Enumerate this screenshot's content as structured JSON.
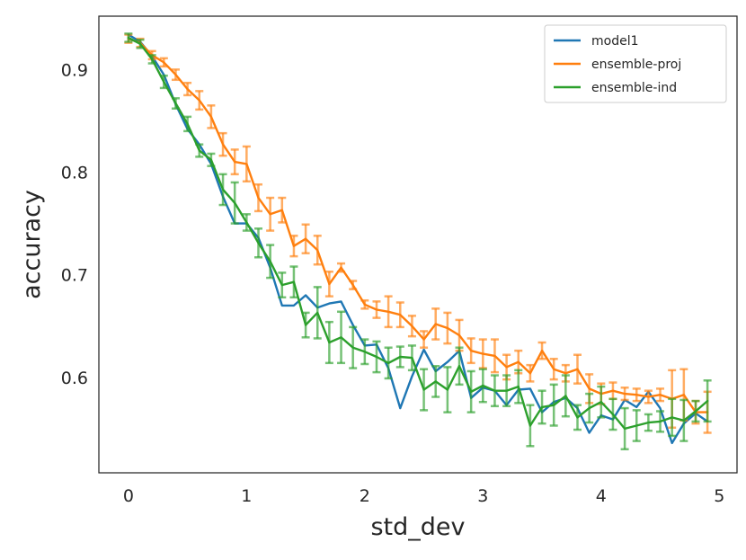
{
  "chart_data": {
    "type": "line",
    "title": "",
    "xlabel": "std_dev",
    "ylabel": "accuracy",
    "xlim": [
      -0.25,
      5.15
    ],
    "ylim": [
      0.507,
      0.952
    ],
    "xticks": [
      0,
      1,
      2,
      3,
      4,
      5
    ],
    "xtick_labels": [
      "0",
      "1",
      "2",
      "3",
      "4",
      "5"
    ],
    "yticks": [
      0.6,
      0.7,
      0.8,
      0.9
    ],
    "ytick_labels": [
      "0.6",
      "0.7",
      "0.8",
      "0.9"
    ],
    "grid": false,
    "legend_position": "top-right",
    "x": [
      0.0,
      0.1,
      0.2,
      0.3,
      0.4,
      0.5,
      0.6,
      0.7,
      0.8,
      0.9,
      1.0,
      1.1,
      1.2,
      1.3,
      1.4,
      1.5,
      1.6,
      1.7,
      1.8,
      1.9,
      2.0,
      2.1,
      2.2,
      2.3,
      2.4,
      2.5,
      2.6,
      2.7,
      2.8,
      2.9,
      3.0,
      3.1,
      3.2,
      3.3,
      3.4,
      3.5,
      3.6,
      3.7,
      3.8,
      3.9,
      4.0,
      4.1,
      4.2,
      4.3,
      4.4,
      4.5,
      4.6,
      4.7,
      4.8,
      4.9
    ],
    "series": [
      {
        "name": "model1",
        "color": "#1f77b4",
        "values": [
          0.934,
          0.927,
          0.913,
          0.895,
          0.866,
          0.842,
          0.827,
          0.808,
          0.776,
          0.75,
          0.75,
          0.736,
          0.707,
          0.67,
          0.67,
          0.68,
          0.668,
          0.672,
          0.674,
          0.651,
          0.631,
          0.632,
          0.609,
          0.57,
          0.601,
          0.627,
          0.606,
          0.615,
          0.626,
          0.58,
          0.59,
          0.587,
          0.573,
          0.588,
          0.589,
          0.566,
          0.576,
          0.58,
          0.57,
          0.546,
          0.563,
          0.559,
          0.578,
          0.571,
          0.586,
          0.57,
          0.536,
          0.555,
          0.565,
          0.557
        ],
        "errors": []
      },
      {
        "name": "ensemble-proj",
        "color": "#ff7f0e",
        "values": [
          0.93,
          0.926,
          0.914,
          0.907,
          0.895,
          0.881,
          0.87,
          0.854,
          0.827,
          0.81,
          0.808,
          0.775,
          0.759,
          0.763,
          0.728,
          0.735,
          0.724,
          0.691,
          0.707,
          0.69,
          0.671,
          0.666,
          0.664,
          0.661,
          0.65,
          0.637,
          0.652,
          0.648,
          0.641,
          0.626,
          0.623,
          0.621,
          0.61,
          0.615,
          0.604,
          0.626,
          0.608,
          0.604,
          0.608,
          0.589,
          0.584,
          0.587,
          0.584,
          0.583,
          0.581,
          0.583,
          0.579,
          0.583,
          0.566,
          0.566
        ],
        "errors": [
          0.004,
          0.004,
          0.004,
          0.004,
          0.005,
          0.006,
          0.009,
          0.011,
          0.011,
          0.012,
          0.017,
          0.013,
          0.016,
          0.012,
          0.01,
          0.014,
          0.014,
          0.012,
          0.004,
          0.004,
          0.004,
          0.008,
          0.015,
          0.012,
          0.01,
          0.008,
          0.015,
          0.015,
          0.015,
          0.012,
          0.014,
          0.016,
          0.012,
          0.011,
          0.008,
          0.008,
          0.01,
          0.008,
          0.014,
          0.014,
          0.01,
          0.008,
          0.006,
          0.006,
          0.006,
          0.006,
          0.028,
          0.025,
          0.011,
          0.02
        ]
      },
      {
        "name": "ensemble-ind",
        "color": "#2ca02c",
        "values": [
          0.931,
          0.925,
          0.91,
          0.888,
          0.867,
          0.847,
          0.821,
          0.812,
          0.783,
          0.77,
          0.751,
          0.731,
          0.713,
          0.69,
          0.693,
          0.651,
          0.663,
          0.634,
          0.639,
          0.629,
          0.625,
          0.62,
          0.614,
          0.62,
          0.619,
          0.588,
          0.596,
          0.588,
          0.611,
          0.586,
          0.592,
          0.587,
          0.587,
          0.591,
          0.553,
          0.571,
          0.573,
          0.582,
          0.561,
          0.57,
          0.576,
          0.564,
          0.55,
          0.553,
          0.556,
          0.557,
          0.561,
          0.558,
          0.567,
          0.577
        ],
        "errors": [
          0.004,
          0.004,
          0.004,
          0.006,
          0.005,
          0.007,
          0.006,
          0.006,
          0.015,
          0.02,
          0.008,
          0.014,
          0.016,
          0.012,
          0.015,
          0.012,
          0.025,
          0.02,
          0.025,
          0.02,
          0.012,
          0.015,
          0.015,
          0.01,
          0.012,
          0.02,
          0.015,
          0.022,
          0.018,
          0.02,
          0.016,
          0.015,
          0.015,
          0.016,
          0.02,
          0.016,
          0.02,
          0.02,
          0.012,
          0.014,
          0.015,
          0.015,
          0.02,
          0.015,
          0.008,
          0.01,
          0.018,
          0.02,
          0.01,
          0.02
        ]
      }
    ]
  }
}
